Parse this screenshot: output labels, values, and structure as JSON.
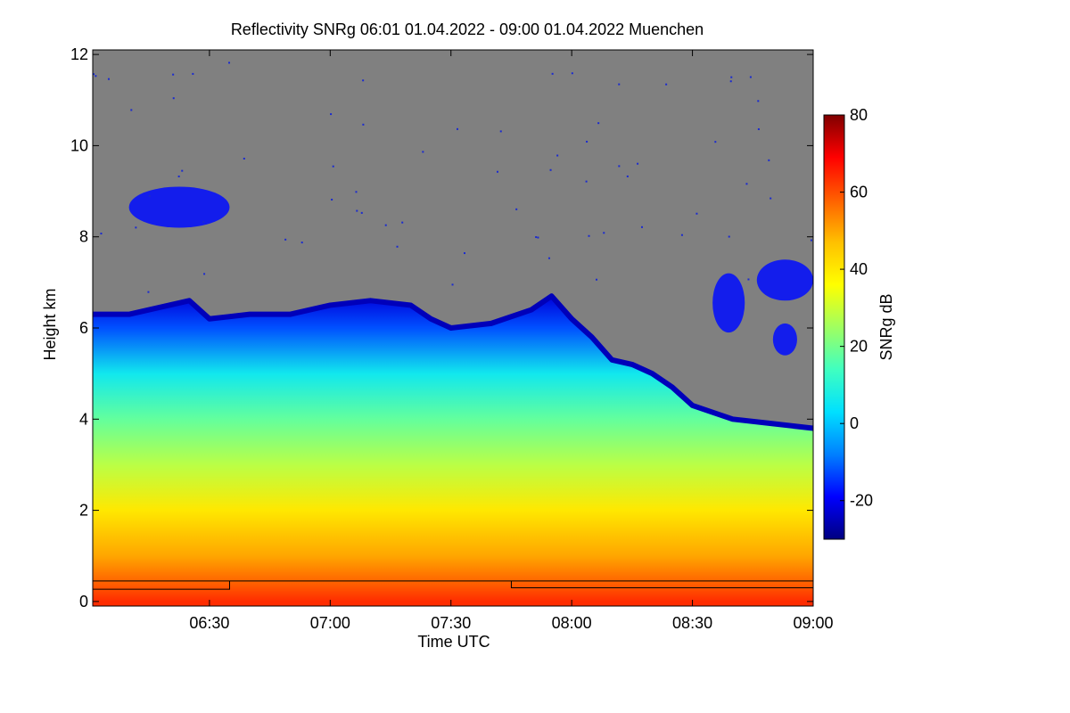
{
  "chart_data": {
    "type": "heatmap",
    "title": "Reflectivity SNRg   06:01 01.04.2022 - 09:00 01.04.2022 Muenchen",
    "xlabel": "Time UTC",
    "ylabel": "Height km",
    "x_ticks": [
      "06:30",
      "07:00",
      "07:30",
      "08:00",
      "08:30",
      "09:00"
    ],
    "y_ticks": [
      "0",
      "2",
      "4",
      "6",
      "8",
      "10",
      "12"
    ],
    "xlim_minutes": [
      361,
      540
    ],
    "ylim_km": [
      -0.1,
      12.1
    ],
    "colorbar": {
      "label": "SNRg dB",
      "range": [
        -30,
        80
      ],
      "ticks": [
        "-20",
        "0",
        "20",
        "40",
        "60",
        "80"
      ],
      "colors": [
        "#000080",
        "#0000ff",
        "#0080ff",
        "#00e0ff",
        "#40ffc0",
        "#a0ff60",
        "#ffff00",
        "#ffc000",
        "#ff6000",
        "#ff0000",
        "#800000"
      ]
    },
    "background_color": "#808080",
    "cloud_top_km": [
      {
        "t": 361,
        "h": 6.3
      },
      {
        "t": 370,
        "h": 6.3
      },
      {
        "t": 380,
        "h": 6.5
      },
      {
        "t": 385,
        "h": 6.6
      },
      {
        "t": 390,
        "h": 6.2
      },
      {
        "t": 400,
        "h": 6.3
      },
      {
        "t": 410,
        "h": 6.3
      },
      {
        "t": 420,
        "h": 6.5
      },
      {
        "t": 430,
        "h": 6.6
      },
      {
        "t": 440,
        "h": 6.5
      },
      {
        "t": 445,
        "h": 6.2
      },
      {
        "t": 450,
        "h": 6.0
      },
      {
        "t": 460,
        "h": 6.1
      },
      {
        "t": 470,
        "h": 6.4
      },
      {
        "t": 475,
        "h": 6.7
      },
      {
        "t": 480,
        "h": 6.2
      },
      {
        "t": 485,
        "h": 5.8
      },
      {
        "t": 490,
        "h": 5.3
      },
      {
        "t": 495,
        "h": 5.2
      },
      {
        "t": 500,
        "h": 5.0
      },
      {
        "t": 505,
        "h": 4.7
      },
      {
        "t": 510,
        "h": 4.3
      },
      {
        "t": 520,
        "h": 4.0
      },
      {
        "t": 530,
        "h": 3.9
      },
      {
        "t": 540,
        "h": 3.8
      }
    ],
    "upper_cloud_patches": [
      {
        "t0": 370,
        "t1": 395,
        "h0": 8.2,
        "h1": 9.1
      },
      {
        "t0": 515,
        "t1": 523,
        "h0": 5.9,
        "h1": 7.2
      },
      {
        "t0": 526,
        "t1": 540,
        "h0": 6.6,
        "h1": 7.5
      },
      {
        "t0": 530,
        "t1": 536,
        "h0": 5.4,
        "h1": 6.1
      }
    ],
    "surface_line_km": [
      {
        "t": 361,
        "h": 0.27
      },
      {
        "t": 395,
        "h": 0.27
      },
      {
        "t": 395,
        "h": 0.45
      },
      {
        "t": 465,
        "h": 0.45
      },
      {
        "t": 465,
        "h": 0.3
      },
      {
        "t": 540,
        "h": 0.3
      }
    ],
    "surface_line_top_km": 0.45
  }
}
